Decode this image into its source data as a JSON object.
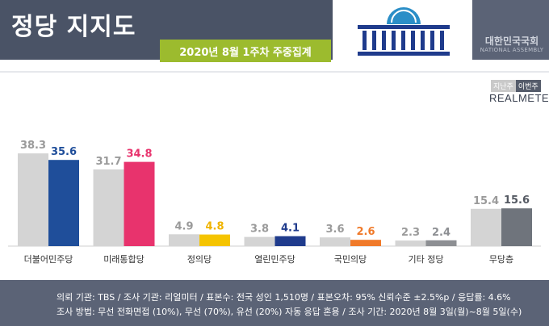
{
  "header": {
    "title": "정당 지지도",
    "subtitle": "2020년 8월 1주차 주중집계",
    "assembly_ko": "대한민국국회",
    "assembly_en": "NATIONAL ASSEMBLY"
  },
  "legend": {
    "prev_label": "지난주",
    "curr_label": "이번주"
  },
  "brand": "REALMETER",
  "chart_data": {
    "type": "bar",
    "categories": [
      "더불어민주당",
      "미래통합당",
      "정의당",
      "열린민주당",
      "국민의당",
      "기타 정당",
      "무당층"
    ],
    "series": [
      {
        "name": "지난주",
        "values": [
          38.3,
          31.7,
          4.9,
          3.8,
          3.6,
          2.3,
          15.4
        ]
      },
      {
        "name": "이번주",
        "values": [
          35.6,
          34.8,
          4.8,
          4.1,
          2.6,
          2.4,
          15.6
        ]
      }
    ],
    "ylim": [
      0,
      45
    ],
    "grid": false,
    "legend_position": "top-right"
  },
  "colors": {
    "prev": "#d4d4d4",
    "curr": [
      "#1f4e9a",
      "#e8336d",
      "#f5c400",
      "#1f3b8c",
      "#f07a2a",
      "#8d8f93",
      "#6f747c"
    ],
    "value_text_curr": [
      "#1f4e9a",
      "#e8336d",
      "#f0b400",
      "#1f3b8c",
      "#f07a2a",
      "#8d8f93",
      "#555a63"
    ]
  },
  "bar_texts": {
    "더불어민주당": "더불어민주당",
    "미래통합당": "미래통합당",
    "정의당": "정의당",
    "열린민주당": "열린민주당",
    "국민의당": "국민의당"
  },
  "footer": {
    "line1": "의뢰 기관:  TBS  /  조사 기관:  리얼미터  /  표본수:  전국 성인 1,510명  /  표본오차:  95% 신뢰수준 ±2.5%p  /  응답률:  4.6%",
    "line2": "조사 방법:  무선 전화면접 (10%),  무선 (70%),  유선 (20%)  자동 응답 혼용  /  조사 기간:  2020년 8월 3일(월)~8월 5일(수)"
  }
}
